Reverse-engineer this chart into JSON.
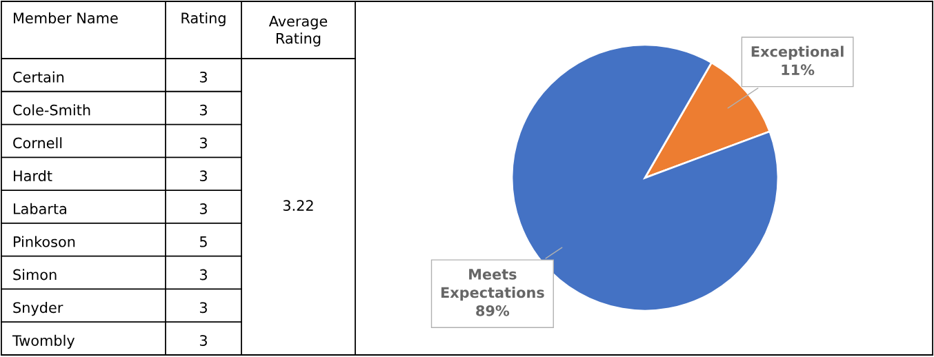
{
  "chart_data": [
    {
      "type": "other",
      "annotations": [
        "Member Name",
        "Rating",
        "Average Rating",
        "3.22"
      ],
      "categories": [
        "Certain",
        "Cole-Smith",
        "Cornell",
        "Hardt",
        "Labarta",
        "Pinkoson",
        "Simon",
        "Snyder",
        "Twombly"
      ],
      "values": [
        3,
        3,
        3,
        3,
        3,
        5,
        3,
        3,
        3
      ],
      "data_labels": true
    },
    {
      "type": "pie",
      "categories": [
        "Exceptional",
        "Meets Expectations"
      ],
      "values": [
        11,
        89
      ],
      "colors": [
        "#ed7d31",
        "#4472c4"
      ],
      "value_labels": [
        "11%",
        "89%"
      ]
    }
  ]
}
